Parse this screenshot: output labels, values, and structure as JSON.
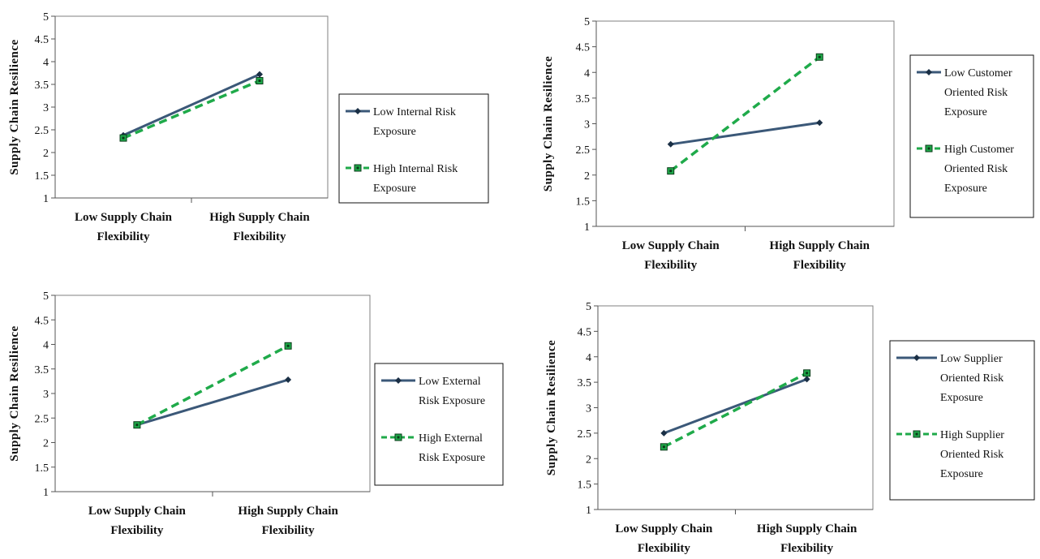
{
  "colors": {
    "low_series": "#3b5878",
    "high_series": "#1faa4a",
    "axis": "#808080",
    "border": "#111111"
  },
  "chart_data": [
    {
      "type": "line",
      "categories": [
        [
          "Low Supply Chain",
          "Flexibility"
        ],
        [
          "High Supply Chain",
          "Flexibility"
        ]
      ],
      "ylabel": "Supply  Chain  Resilience",
      "ylim": [
        1,
        5
      ],
      "yticks": [
        "1",
        "1.5",
        "2",
        "2.5",
        "3",
        "3.5",
        "4",
        "4.5",
        "5"
      ],
      "grid": false,
      "legend_position": "right",
      "series": [
        {
          "name": [
            "Low Internal Risk",
            "Exposure"
          ],
          "values": [
            2.38,
            3.72
          ],
          "style": "solid",
          "marker": "diamond"
        },
        {
          "name": [
            "High Internal Risk",
            "Exposure"
          ],
          "values": [
            2.32,
            3.58
          ],
          "style": "dashed",
          "marker": "square"
        }
      ]
    },
    {
      "type": "line",
      "categories": [
        [
          "Low Supply Chain",
          "Flexibility"
        ],
        [
          "High Supply Chain",
          "Flexibility"
        ]
      ],
      "ylabel": "Supply  Chain  Resilience",
      "ylim": [
        1,
        5
      ],
      "yticks": [
        "1",
        "1.5",
        "2",
        "2.5",
        "3",
        "3.5",
        "4",
        "4.5",
        "5"
      ],
      "grid": false,
      "legend_position": "right",
      "series": [
        {
          "name": [
            "Low Customer",
            "Oriented Risk",
            "Exposure"
          ],
          "values": [
            2.6,
            3.02
          ],
          "style": "solid",
          "marker": "diamond"
        },
        {
          "name": [
            "High Customer",
            "Oriented Risk",
            "Exposure"
          ],
          "values": [
            2.08,
            4.3
          ],
          "style": "dashed",
          "marker": "square"
        }
      ]
    },
    {
      "type": "line",
      "categories": [
        [
          "Low Supply Chain",
          "Flexibility"
        ],
        [
          "High Supply Chain",
          "Flexibility"
        ]
      ],
      "ylabel": "Supply  Chain  Resilience",
      "ylim": [
        1,
        5
      ],
      "yticks": [
        "1",
        "1.5",
        "2",
        "2.5",
        "3",
        "3.5",
        "4",
        "4.5",
        "5"
      ],
      "grid": false,
      "legend_position": "right",
      "series": [
        {
          "name": [
            "Low External",
            "Risk Exposure"
          ],
          "values": [
            2.36,
            3.28
          ],
          "style": "solid",
          "marker": "diamond"
        },
        {
          "name": [
            "High External",
            "Risk Exposure"
          ],
          "values": [
            2.36,
            3.97
          ],
          "style": "dashed",
          "marker": "square"
        }
      ]
    },
    {
      "type": "line",
      "categories": [
        [
          "Low Supply Chain",
          "Flexibility"
        ],
        [
          "High Supply Chain",
          "Flexibility"
        ]
      ],
      "ylabel": "Supply  Chain  Resilience",
      "ylim": [
        1,
        5
      ],
      "yticks": [
        "1",
        "1.5",
        "2",
        "2.5",
        "3",
        "3.5",
        "4",
        "4.5",
        "5"
      ],
      "grid": false,
      "legend_position": "right",
      "series": [
        {
          "name": [
            "Low Supplier",
            "Oriented Risk",
            "Exposure"
          ],
          "values": [
            2.5,
            3.56
          ],
          "style": "solid",
          "marker": "diamond"
        },
        {
          "name": [
            "High Supplier",
            "Oriented Risk",
            "Exposure"
          ],
          "values": [
            2.23,
            3.68
          ],
          "style": "dashed",
          "marker": "square"
        }
      ]
    }
  ]
}
